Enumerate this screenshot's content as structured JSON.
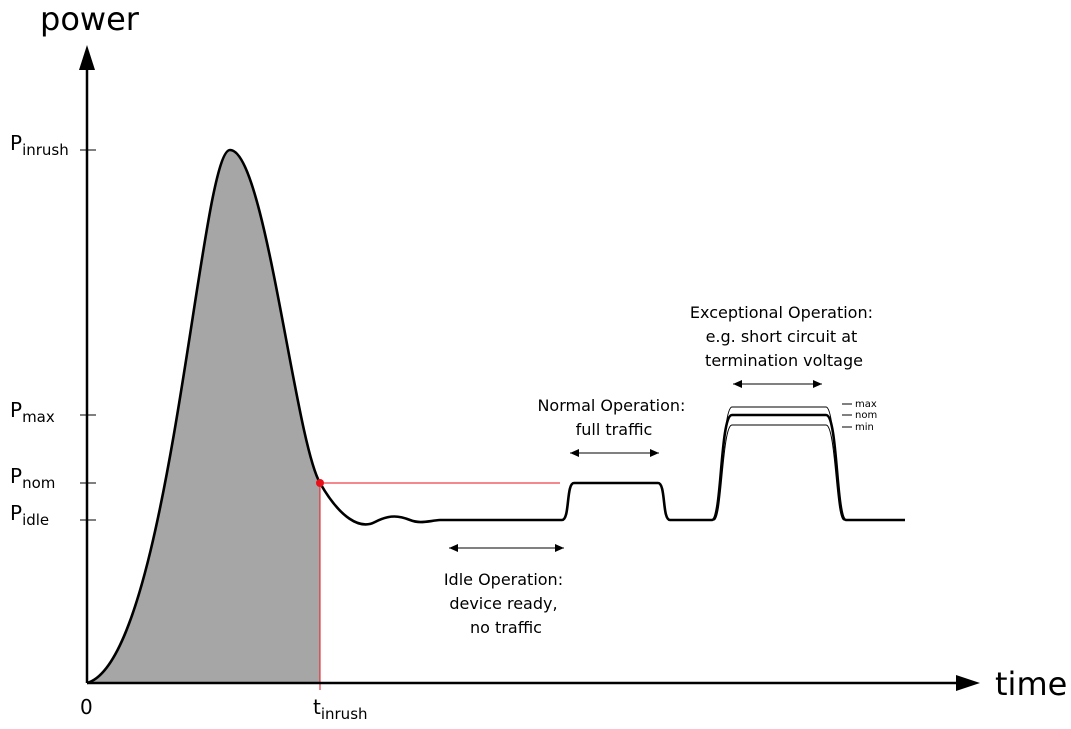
{
  "axes": {
    "y_title": "power",
    "x_title": "time"
  },
  "y_ticks": {
    "inrush": {
      "main": "P",
      "sub": "inrush"
    },
    "max": {
      "main": "P",
      "sub": "max"
    },
    "nom": {
      "main": "P",
      "sub": "nom"
    },
    "idle": {
      "main": "P",
      "sub": "idle"
    }
  },
  "x_ticks": {
    "zero": "0",
    "inrush": {
      "main": "t",
      "sub": "inrush"
    }
  },
  "annotations": {
    "idle": [
      "Idle Operation:",
      "device ready,",
      "no traffic"
    ],
    "normal": [
      "Normal Operation:",
      "full traffic"
    ],
    "exceptional": [
      "Exceptional Operation:",
      "e.g. short circuit at",
      "termination voltage"
    ]
  },
  "exceptional_levels": [
    "max",
    "nom",
    "min"
  ],
  "colors": {
    "curve": "#000000",
    "fill": "#a6a6a6",
    "marker": "#e8111a",
    "guide": "#e8111a"
  }
}
